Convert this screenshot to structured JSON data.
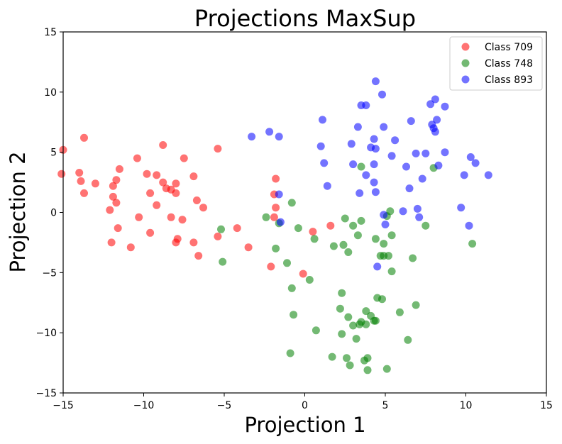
{
  "chart_data": {
    "type": "scatter",
    "title": "Projections MaxSup",
    "xlabel": "Projection 1",
    "ylabel": "Projection 2",
    "xlim": [
      -15,
      15
    ],
    "ylim": [
      -15,
      15
    ],
    "xticks": [
      -15,
      -10,
      -5,
      0,
      5,
      10,
      15
    ],
    "yticks": [
      -15,
      -10,
      -5,
      0,
      5,
      10,
      15
    ],
    "grid": false,
    "legend_position": "top-right",
    "marker_alpha": 0.55,
    "series": [
      {
        "name": "Class 709",
        "color": "#ff0000",
        "points": [
          [
            -15.0,
            5.2
          ],
          [
            -15.1,
            3.2
          ],
          [
            -13.7,
            6.2
          ],
          [
            -14.0,
            3.3
          ],
          [
            -13.9,
            2.6
          ],
          [
            -13.7,
            1.6
          ],
          [
            -13.0,
            2.4
          ],
          [
            -11.9,
            2.2
          ],
          [
            -11.9,
            1.3
          ],
          [
            -11.7,
            2.7
          ],
          [
            -11.5,
            3.6
          ],
          [
            -11.7,
            0.8
          ],
          [
            -12.1,
            0.2
          ],
          [
            -11.6,
            -1.3
          ],
          [
            -12.0,
            -2.5
          ],
          [
            -10.8,
            -2.9
          ],
          [
            -10.4,
            4.5
          ],
          [
            -10.3,
            -0.4
          ],
          [
            -9.8,
            3.2
          ],
          [
            -9.6,
            1.6
          ],
          [
            -9.2,
            3.1
          ],
          [
            -9.2,
            0.6
          ],
          [
            -9.6,
            -1.7
          ],
          [
            -8.8,
            5.6
          ],
          [
            -8.8,
            2.5
          ],
          [
            -8.6,
            2.0
          ],
          [
            -8.3,
            1.9
          ],
          [
            -8.0,
            2.4
          ],
          [
            -8.0,
            1.6
          ],
          [
            -8.3,
            -0.4
          ],
          [
            -8.0,
            -2.5
          ],
          [
            -7.9,
            -2.2
          ],
          [
            -7.5,
            4.5
          ],
          [
            -7.6,
            -0.6
          ],
          [
            -6.9,
            3.0
          ],
          [
            -6.7,
            1.0
          ],
          [
            -6.3,
            0.4
          ],
          [
            -6.9,
            -2.5
          ],
          [
            -6.6,
            -3.6
          ],
          [
            -5.4,
            5.3
          ],
          [
            -5.4,
            -2.0
          ],
          [
            -4.2,
            -1.3
          ],
          [
            -3.5,
            -2.9
          ],
          [
            -2.1,
            -4.5
          ],
          [
            -1.8,
            2.8
          ],
          [
            -1.9,
            1.5
          ],
          [
            -1.8,
            0.4
          ],
          [
            -1.9,
            -0.4
          ],
          [
            -0.1,
            -5.1
          ],
          [
            0.5,
            -1.6
          ],
          [
            1.6,
            -1.1
          ]
        ]
      },
      {
        "name": "Class 748",
        "color": "#008000",
        "points": [
          [
            -5.2,
            -1.4
          ],
          [
            -5.1,
            -4.1
          ],
          [
            -2.4,
            -0.4
          ],
          [
            -1.8,
            -3.0
          ],
          [
            -1.6,
            -0.9
          ],
          [
            -1.1,
            -4.2
          ],
          [
            -0.8,
            0.8
          ],
          [
            -0.8,
            -6.3
          ],
          [
            -0.7,
            -8.5
          ],
          [
            -0.9,
            -11.7
          ],
          [
            -0.4,
            -1.3
          ],
          [
            0.3,
            -5.6
          ],
          [
            0.6,
            -2.2
          ],
          [
            0.7,
            -9.8
          ],
          [
            1.7,
            -12.0
          ],
          [
            1.8,
            -2.8
          ],
          [
            2.2,
            -8.0
          ],
          [
            2.4,
            -2.7
          ],
          [
            2.3,
            -6.7
          ],
          [
            2.3,
            -10.1
          ],
          [
            2.5,
            -0.5
          ],
          [
            2.7,
            -3.3
          ],
          [
            2.7,
            -8.7
          ],
          [
            2.6,
            -12.1
          ],
          [
            2.8,
            -12.7
          ],
          [
            3.0,
            -1.1
          ],
          [
            3.0,
            -9.4
          ],
          [
            3.2,
            -10.5
          ],
          [
            3.3,
            -1.9
          ],
          [
            3.5,
            -0.7
          ],
          [
            3.5,
            -9.1
          ],
          [
            3.4,
            -9.3
          ],
          [
            3.5,
            3.8
          ],
          [
            3.7,
            -12.3
          ],
          [
            3.8,
            -8.2
          ],
          [
            3.8,
            -9.3
          ],
          [
            3.9,
            -12.1
          ],
          [
            3.9,
            -13.1
          ],
          [
            4.1,
            -8.6
          ],
          [
            4.3,
            -9.0
          ],
          [
            4.4,
            -2.2
          ],
          [
            4.4,
            -9.0
          ],
          [
            4.5,
            -7.1
          ],
          [
            4.7,
            -3.6
          ],
          [
            4.8,
            -7.2
          ],
          [
            4.9,
            -2.6
          ],
          [
            4.9,
            -3.6
          ],
          [
            5.1,
            -0.3
          ],
          [
            5.1,
            -13.0
          ],
          [
            5.2,
            -3.6
          ],
          [
            5.3,
            0.1
          ],
          [
            5.4,
            -1.9
          ],
          [
            5.4,
            -4.9
          ],
          [
            5.9,
            -8.3
          ],
          [
            6.4,
            -10.6
          ],
          [
            6.7,
            -3.8
          ],
          [
            6.9,
            -7.7
          ],
          [
            7.5,
            -1.1
          ],
          [
            8.0,
            3.7
          ],
          [
            10.4,
            -2.6
          ]
        ]
      },
      {
        "name": "Class 893",
        "color": "#0000ff",
        "points": [
          [
            -3.3,
            6.3
          ],
          [
            -2.2,
            6.7
          ],
          [
            -1.6,
            6.3
          ],
          [
            -1.6,
            1.5
          ],
          [
            -1.5,
            -0.8
          ],
          [
            1.0,
            5.5
          ],
          [
            1.1,
            7.7
          ],
          [
            1.2,
            4.1
          ],
          [
            1.4,
            2.2
          ],
          [
            2.9,
            5.7
          ],
          [
            3.0,
            4.0
          ],
          [
            3.3,
            7.1
          ],
          [
            3.4,
            1.6
          ],
          [
            3.5,
            8.9
          ],
          [
            3.8,
            8.9
          ],
          [
            3.8,
            3.1
          ],
          [
            4.1,
            5.4
          ],
          [
            4.3,
            6.1
          ],
          [
            4.3,
            4.0
          ],
          [
            4.4,
            10.9
          ],
          [
            4.4,
            5.3
          ],
          [
            4.3,
            2.5
          ],
          [
            4.5,
            -4.5
          ],
          [
            4.4,
            1.7
          ],
          [
            4.8,
            9.8
          ],
          [
            4.9,
            7.1
          ],
          [
            4.9,
            -0.2
          ],
          [
            5.0,
            -1.0
          ],
          [
            5.6,
            6.0
          ],
          [
            5.4,
            4.7
          ],
          [
            6.1,
            0.1
          ],
          [
            6.3,
            3.8
          ],
          [
            6.5,
            2.0
          ],
          [
            6.6,
            7.6
          ],
          [
            6.9,
            4.9
          ],
          [
            7.0,
            0.3
          ],
          [
            7.1,
            -0.4
          ],
          [
            7.3,
            2.8
          ],
          [
            7.5,
            4.9
          ],
          [
            7.8,
            9.0
          ],
          [
            8.1,
            9.4
          ],
          [
            7.9,
            7.3
          ],
          [
            8.0,
            7.0
          ],
          [
            8.2,
            7.7
          ],
          [
            8.1,
            6.7
          ],
          [
            8.3,
            3.9
          ],
          [
            8.7,
            8.8
          ],
          [
            8.7,
            5.0
          ],
          [
            9.7,
            0.4
          ],
          [
            9.9,
            3.1
          ],
          [
            10.2,
            -1.1
          ],
          [
            10.3,
            4.6
          ],
          [
            10.6,
            4.1
          ],
          [
            11.4,
            3.1
          ]
        ]
      }
    ]
  }
}
